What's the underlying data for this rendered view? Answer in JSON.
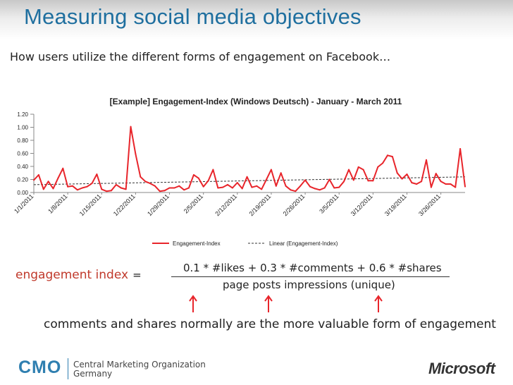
{
  "slide": {
    "title": "Measuring social media objectives",
    "subtitle": "How users utilize the different forms of engagement on Facebook…"
  },
  "formula": {
    "label": "engagement  index",
    "equals": "=",
    "numerator": "0.1 * #likes + 0.3 * #comments + 0.6 * #shares",
    "denominator": "page posts impressions (unique)"
  },
  "note": "comments and shares normally are the more valuable form of engagement",
  "footer": {
    "cmo": "CMO",
    "org_line1": "Central Marketing Organization",
    "org_line2": "Germany",
    "microsoft": "Microsoft"
  },
  "colors": {
    "title": "#1f6f9f",
    "series": "#e8252b",
    "trend": "#333333",
    "accent": "#c0392b"
  },
  "chart_data": {
    "type": "line",
    "title": "[Example] Engagement-Index (Windows Deutsch) - January - March 2011",
    "xlabel": "",
    "ylabel": "",
    "ylim": [
      0,
      1.2
    ],
    "yticks": [
      "0.00",
      "0.20",
      "0.40",
      "0.60",
      "0.80",
      "1.00",
      "1.20"
    ],
    "xtick_labels": [
      "1/1/2011",
      "1/8/2011",
      "1/15/2011",
      "1/22/2011",
      "1/29/2011",
      "2/5/2011",
      "2/12/2011",
      "2/19/2011",
      "2/26/2011",
      "3/5/2011",
      "3/12/2011",
      "3/19/2011",
      "3/26/2011"
    ],
    "series": [
      {
        "name": "Engagement-Index",
        "values": [
          0.19,
          0.27,
          0.05,
          0.17,
          0.06,
          0.22,
          0.37,
          0.09,
          0.1,
          0.04,
          0.07,
          0.09,
          0.14,
          0.28,
          0.05,
          0.02,
          0.03,
          0.12,
          0.07,
          0.05,
          1.01,
          0.59,
          0.24,
          0.17,
          0.14,
          0.1,
          0.02,
          0.03,
          0.07,
          0.07,
          0.1,
          0.04,
          0.07,
          0.27,
          0.22,
          0.09,
          0.18,
          0.35,
          0.07,
          0.08,
          0.12,
          0.07,
          0.15,
          0.06,
          0.24,
          0.08,
          0.1,
          0.05,
          0.2,
          0.35,
          0.1,
          0.3,
          0.1,
          0.04,
          0.02,
          0.1,
          0.19,
          0.09,
          0.06,
          0.04,
          0.07,
          0.2,
          0.07,
          0.08,
          0.17,
          0.35,
          0.19,
          0.39,
          0.35,
          0.18,
          0.18,
          0.39,
          0.45,
          0.57,
          0.55,
          0.3,
          0.21,
          0.28,
          0.15,
          0.13,
          0.17,
          0.5,
          0.08,
          0.29,
          0.17,
          0.13,
          0.13,
          0.08,
          0.67,
          0.09
        ]
      }
    ],
    "trendline": {
      "name": "Linear (Engagement-Index)",
      "start": 0.12,
      "end": 0.24
    },
    "legend": "bottom"
  }
}
